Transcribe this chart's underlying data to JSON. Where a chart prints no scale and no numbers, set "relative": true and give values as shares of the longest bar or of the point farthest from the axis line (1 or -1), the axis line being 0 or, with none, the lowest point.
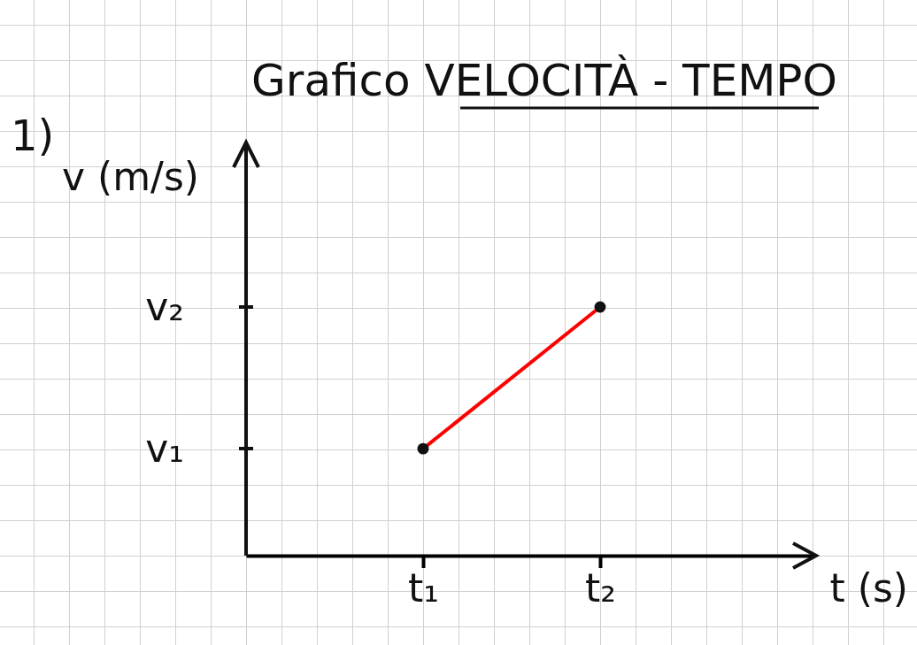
{
  "chart_data": {
    "type": "line",
    "title": "Grafico VELOCITÀ - TEMPO",
    "xlabel": "t (s)",
    "ylabel": "v (m/s)",
    "annotations": [
      "1)",
      "v₁",
      "v₂"
    ],
    "categories": [
      null,
      null,
      null,
      null,
      null,
      "t₁",
      null,
      null,
      null,
      null,
      "t₂",
      null,
      null,
      null,
      null,
      null,
      null
    ],
    "relative": true,
    "series": [
      {
        "color": "#ff0000",
        "values": [
          null,
          null,
          null,
          null,
          null,
          0.43,
          null,
          null,
          null,
          null,
          1,
          null,
          null,
          null,
          null,
          null,
          null
        ]
      }
    ],
    "marker": "circle",
    "line_style": "solid"
  }
}
